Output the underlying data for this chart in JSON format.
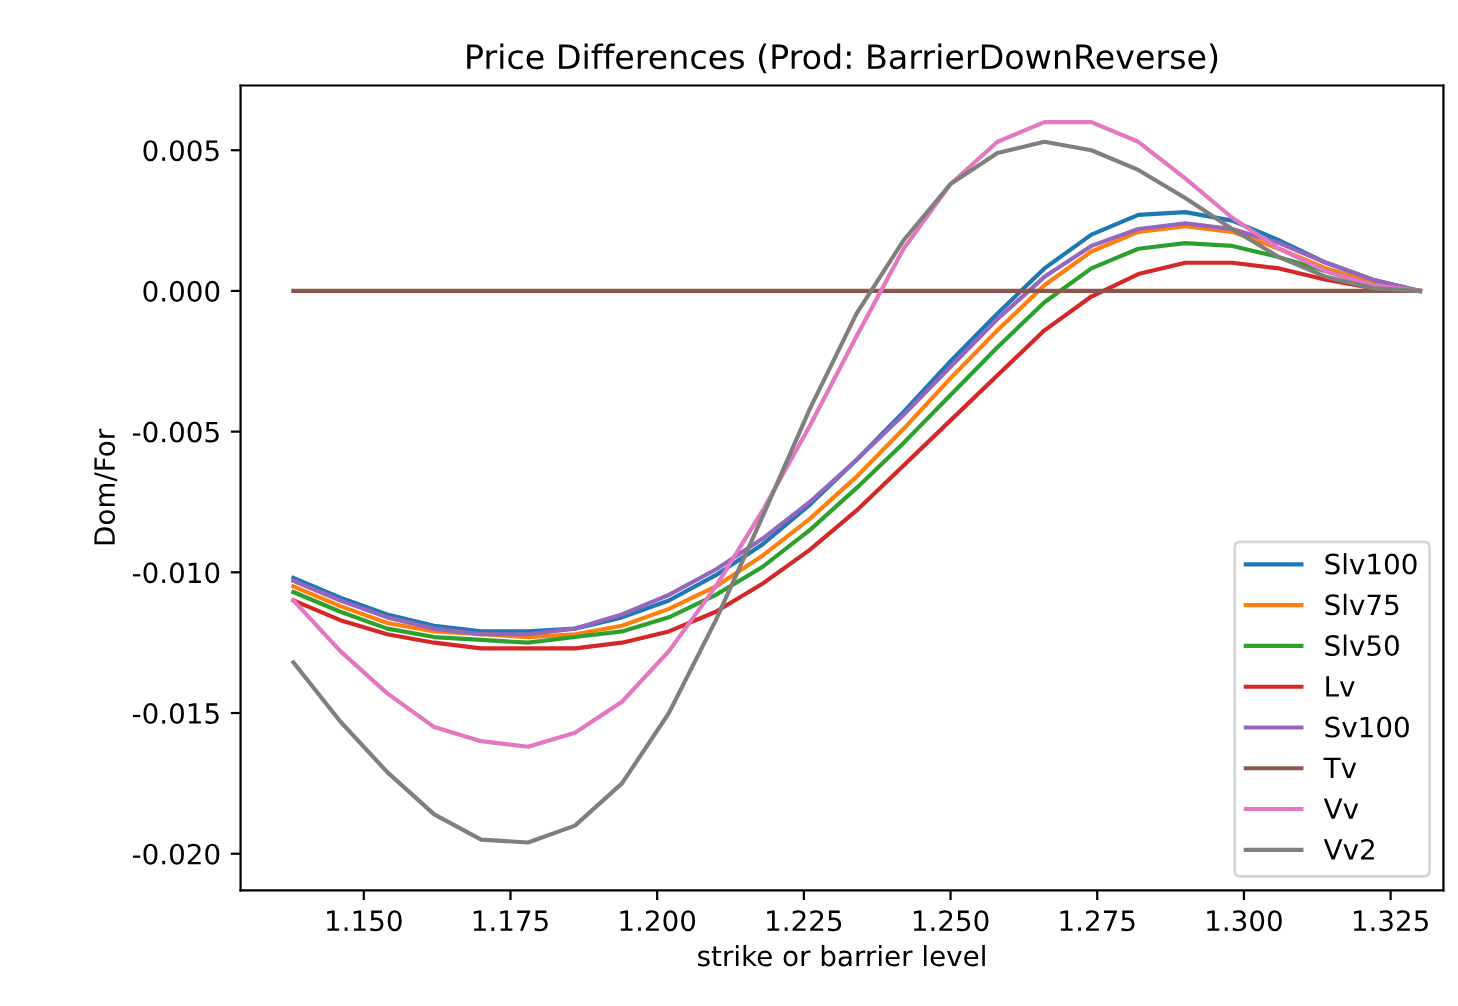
{
  "chart_data": {
    "type": "line",
    "title": "Price Differences (Prod: BarrierDownReverse)",
    "xlabel": "strike or barrier level",
    "ylabel": "Dom/For",
    "x": [
      1.138,
      1.146,
      1.154,
      1.162,
      1.17,
      1.178,
      1.186,
      1.194,
      1.202,
      1.21,
      1.218,
      1.226,
      1.234,
      1.242,
      1.25,
      1.258,
      1.266,
      1.274,
      1.282,
      1.29,
      1.298,
      1.306,
      1.314,
      1.322,
      1.33
    ],
    "series": [
      {
        "name": "Slv100",
        "color": "#1f77b4",
        "values": [
          -0.0102,
          -0.0109,
          -0.0115,
          -0.0119,
          -0.0121,
          -0.0121,
          -0.012,
          -0.0116,
          -0.011,
          -0.0101,
          -0.009,
          -0.0076,
          -0.006,
          -0.0043,
          -0.0025,
          -0.0008,
          0.0008,
          0.002,
          0.0027,
          0.0028,
          0.0025,
          0.0018,
          0.001,
          0.0004,
          0.0
        ]
      },
      {
        "name": "Slv75",
        "color": "#ff7f0e",
        "values": [
          -0.0105,
          -0.0112,
          -0.0118,
          -0.0121,
          -0.0122,
          -0.0123,
          -0.0122,
          -0.0119,
          -0.0113,
          -0.0105,
          -0.0094,
          -0.0081,
          -0.0066,
          -0.0049,
          -0.0031,
          -0.0014,
          0.0002,
          0.0014,
          0.0021,
          0.0023,
          0.0021,
          0.0015,
          0.0008,
          0.0003,
          0.0
        ]
      },
      {
        "name": "Slv50",
        "color": "#2ca02c",
        "values": [
          -0.0107,
          -0.0114,
          -0.012,
          -0.0123,
          -0.0124,
          -0.0125,
          -0.0123,
          -0.0121,
          -0.0116,
          -0.0108,
          -0.0098,
          -0.0085,
          -0.007,
          -0.0054,
          -0.0037,
          -0.002,
          -0.0004,
          0.0008,
          0.0015,
          0.0017,
          0.0016,
          0.0012,
          0.0007,
          0.0002,
          0.0
        ]
      },
      {
        "name": "Lv",
        "color": "#d62728",
        "values": [
          -0.011,
          -0.0117,
          -0.0122,
          -0.0125,
          -0.0127,
          -0.0127,
          -0.0127,
          -0.0125,
          -0.0121,
          -0.0114,
          -0.0104,
          -0.0092,
          -0.0078,
          -0.0062,
          -0.0046,
          -0.003,
          -0.0014,
          -0.0002,
          0.0006,
          0.001,
          0.001,
          0.0008,
          0.0004,
          0.0001,
          0.0
        ]
      },
      {
        "name": "Sv100",
        "color": "#9467bd",
        "values": [
          -0.0103,
          -0.011,
          -0.0116,
          -0.012,
          -0.0122,
          -0.0122,
          -0.012,
          -0.0115,
          -0.0108,
          -0.0099,
          -0.0088,
          -0.0075,
          -0.006,
          -0.0044,
          -0.0027,
          -0.001,
          0.0005,
          0.0016,
          0.0022,
          0.0024,
          0.0022,
          0.0017,
          0.001,
          0.0004,
          0.0
        ]
      },
      {
        "name": "Tv",
        "color": "#8c564b",
        "values": [
          0.0,
          0.0,
          0.0,
          0.0,
          0.0,
          0.0,
          0.0,
          0.0,
          0.0,
          0.0,
          0.0,
          0.0,
          0.0,
          0.0,
          0.0,
          0.0,
          0.0,
          0.0,
          0.0,
          0.0,
          0.0,
          0.0,
          0.0,
          0.0,
          0.0
        ]
      },
      {
        "name": "Vv",
        "color": "#e377c2",
        "values": [
          -0.011,
          -0.0128,
          -0.0143,
          -0.0155,
          -0.016,
          -0.0162,
          -0.0157,
          -0.0146,
          -0.0128,
          -0.0105,
          -0.0078,
          -0.0048,
          -0.0016,
          0.0015,
          0.0038,
          0.0053,
          0.006,
          0.006,
          0.0053,
          0.004,
          0.0026,
          0.0015,
          0.0007,
          0.0002,
          0.0
        ]
      },
      {
        "name": "Vv2",
        "color": "#7f7f7f",
        "values": [
          -0.0132,
          -0.0153,
          -0.0171,
          -0.0186,
          -0.0195,
          -0.0196,
          -0.019,
          -0.0175,
          -0.015,
          -0.0117,
          -0.008,
          -0.0042,
          -0.0008,
          0.0018,
          0.0038,
          0.0049,
          0.0053,
          0.005,
          0.0043,
          0.0033,
          0.0022,
          0.0012,
          0.0005,
          0.0001,
          0.0
        ]
      }
    ],
    "xlim": [
      1.129,
      1.334
    ],
    "ylim": [
      -0.0213,
      0.0073
    ],
    "xticks": [
      {
        "value": 1.15,
        "label": "1.150"
      },
      1.175,
      {
        "value": 1.2,
        "label": "1.200"
      },
      1.225,
      {
        "value": 1.25,
        "label": "1.250"
      },
      1.275,
      {
        "value": 1.3,
        "label": "1.300"
      },
      1.325
    ],
    "yticks": [
      {
        "value": -0.02,
        "label": "-0.020"
      },
      -0.015,
      {
        "value": -0.01,
        "label": "-0.010"
      },
      -0.005,
      {
        "value": 0,
        "label": "0.000"
      },
      0.005
    ],
    "grid": false,
    "legend": "lower right",
    "marker": "none",
    "line_style": "solid"
  }
}
